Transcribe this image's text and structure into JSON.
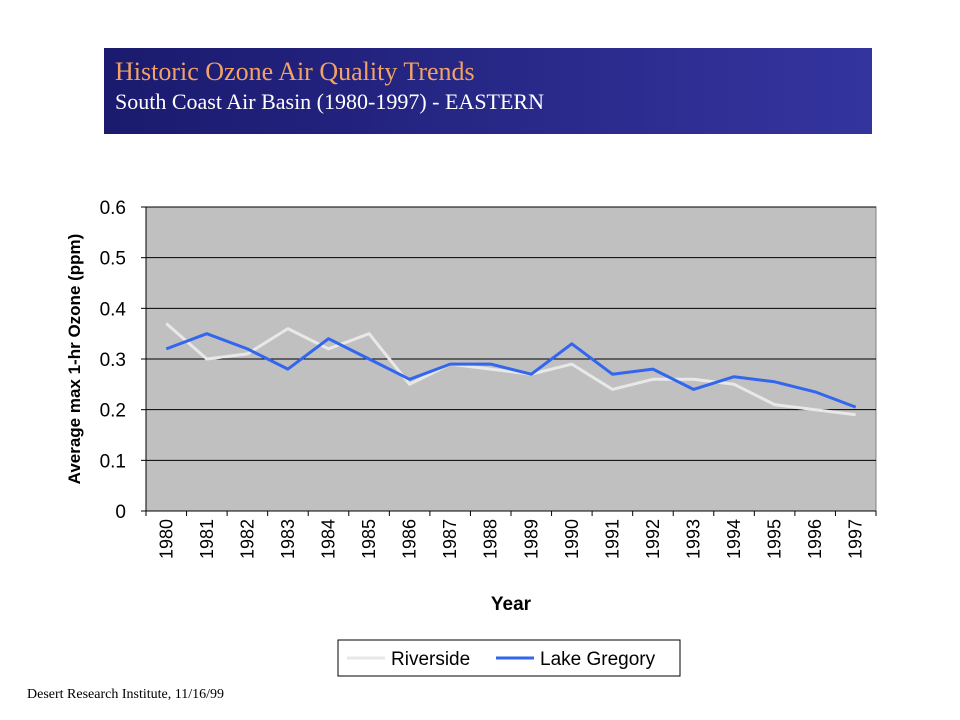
{
  "header": {
    "title": "Historic Ozone Air Quality Trends",
    "subtitle": "South Coast Air Basin (1980-1997) - EASTERN"
  },
  "footer": {
    "credit": "Desert Research Institute, 11/16/99"
  },
  "colors": {
    "plot_background": "#c0c0c0",
    "riverside": "#e8e8e8",
    "lake_gregory": "#3366ee",
    "title_accent": "#f2a266",
    "banner": "#2a2a8c"
  },
  "chart_data": {
    "type": "line",
    "title": "",
    "xlabel": "Year",
    "ylabel": "Average max 1-hr Ozone (ppm)",
    "ylim": [
      0,
      0.6
    ],
    "yticks": [
      "0",
      "0.1",
      "0.2",
      "0.3",
      "0.4",
      "0.5",
      "0.6"
    ],
    "grid": true,
    "legend_position": "bottom",
    "categories": [
      "1980",
      "1981",
      "1982",
      "1983",
      "1984",
      "1985",
      "1986",
      "1987",
      "1988",
      "1989",
      "1990",
      "1991",
      "1992",
      "1993",
      "1994",
      "1995",
      "1996",
      "1997"
    ],
    "series": [
      {
        "name": "Riverside",
        "color": "#e8e8e8",
        "values": [
          0.37,
          0.3,
          0.31,
          0.36,
          0.32,
          0.35,
          0.25,
          0.29,
          0.28,
          0.27,
          0.29,
          0.24,
          0.26,
          0.26,
          0.25,
          0.21,
          0.2,
          0.19
        ]
      },
      {
        "name": "Lake Gregory",
        "color": "#3366ee",
        "values": [
          0.32,
          0.35,
          0.32,
          0.28,
          0.34,
          0.3,
          0.26,
          0.29,
          0.29,
          0.27,
          0.33,
          0.27,
          0.28,
          0.24,
          0.265,
          0.255,
          0.235,
          0.205
        ]
      }
    ]
  }
}
